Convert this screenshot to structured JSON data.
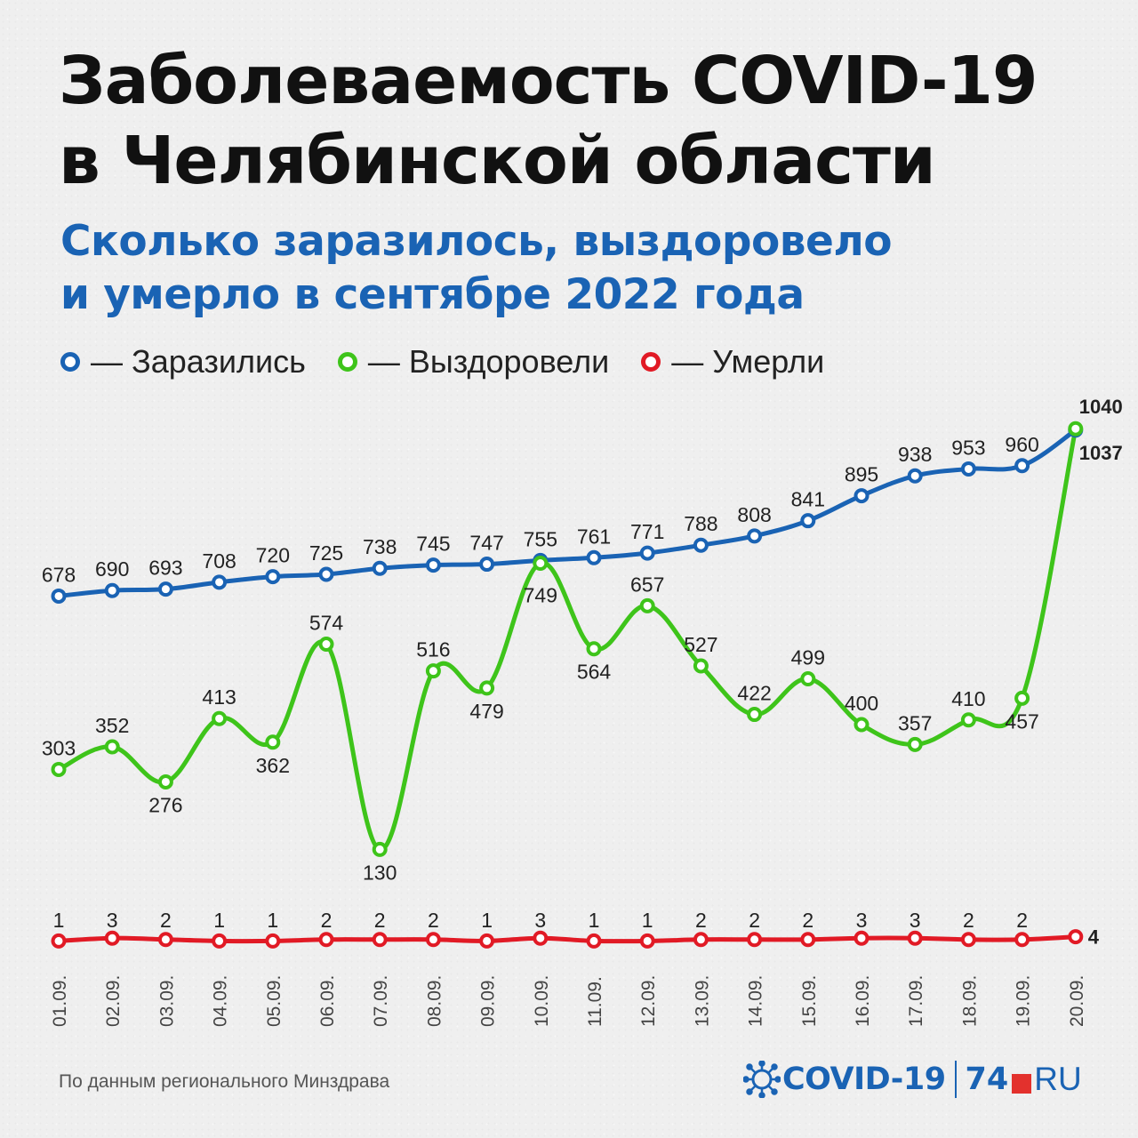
{
  "header": {
    "title_lines": [
      "Заболеваемость COVID-19",
      "в Челябинской области"
    ],
    "subtitle_lines": [
      "Сколько заразилось, выздоровело",
      "и умерло в сентябре 2022 года"
    ]
  },
  "legend": [
    {
      "label": "— Заразились",
      "color": "#1a63b4"
    },
    {
      "label": "— Выздоровели",
      "color": "#3ec41a"
    },
    {
      "label": "— Умерли",
      "color": "#e11a25"
    }
  ],
  "footer": {
    "source": "По данным регионального Минздрава",
    "brand_covid": "COVID-19",
    "brand_74": "74",
    "brand_ru": "RU"
  },
  "chart_data": {
    "type": "line",
    "x": [
      "01.09.",
      "02.09.",
      "03.09.",
      "04.09.",
      "05.09.",
      "06.09.",
      "07.09.",
      "08.09.",
      "09.09.",
      "10.09.",
      "11.09.",
      "12.09.",
      "13.09.",
      "14.09.",
      "15.09.",
      "16.09.",
      "17.09.",
      "18.09.",
      "19.09.",
      "20.09."
    ],
    "grid": false,
    "legend_position": "top-left",
    "series": [
      {
        "name": "Заразились",
        "color": "#1a63b4",
        "values": [
          678,
          690,
          693,
          708,
          720,
          725,
          738,
          745,
          747,
          755,
          761,
          771,
          788,
          808,
          841,
          895,
          938,
          953,
          960,
          1037
        ]
      },
      {
        "name": "Выздоровели",
        "color": "#3ec41a",
        "values": [
          303,
          352,
          276,
          413,
          362,
          574,
          130,
          516,
          479,
          749,
          564,
          657,
          527,
          422,
          499,
          400,
          357,
          410,
          457,
          1040
        ]
      },
      {
        "name": "Умерли",
        "color": "#e11a25",
        "values": [
          1,
          3,
          2,
          1,
          1,
          2,
          2,
          2,
          1,
          3,
          1,
          1,
          2,
          2,
          2,
          3,
          3,
          2,
          2,
          4
        ]
      }
    ]
  }
}
